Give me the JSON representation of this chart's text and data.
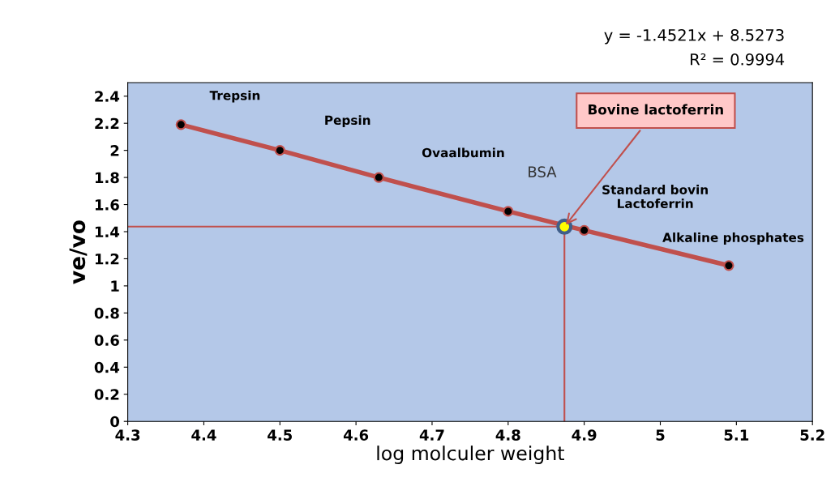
{
  "chart_data": {
    "type": "line",
    "xlabel": "log molculer weight",
    "ylabel": "ve/vo",
    "x": [
      4.37,
      4.5,
      4.63,
      4.8,
      4.9,
      5.09
    ],
    "series": [
      {
        "color": "#c0504d",
        "values": [
          2.19,
          2.0,
          1.8,
          1.55,
          1.41,
          1.15
        ],
        "marker": "circle"
      },
      {
        "type": "scatter",
        "x": [
          4.874
        ],
        "color": "#ffff00",
        "values": [
          1.437
        ]
      }
    ],
    "xlim": [
      4.3,
      5.2
    ],
    "xticks": [
      4.3,
      4.4,
      4.5,
      4.6,
      4.7,
      4.8,
      4.9,
      5,
      5.1,
      5.2
    ],
    "ylim": [
      0,
      2.5
    ],
    "yticks": [
      0,
      0.2,
      0.4,
      0.6,
      0.8,
      1,
      1.2,
      1.4,
      1.6,
      1.8,
      2,
      2.2,
      2.4
    ],
    "ref_lines": [
      {
        "axis": "y",
        "value": 1.437,
        "color": "#c0504d"
      },
      {
        "axis": "x",
        "value": 4.874,
        "color": "#c0504d"
      }
    ],
    "annotations": [
      "y = -1.4521x + 8.5273",
      "R² = 0.9994",
      {
        "text": "Trepsin",
        "x": 4.37,
        "y": 2.19
      },
      "Pepsin",
      "Ovaalbumin",
      {
        "text": "BSA",
        "x": 4.8,
        "y": 1.55
      },
      {
        "text": "Standard bovin\nLactoferrin",
        "x": 4.9,
        "y": 1.41
      },
      {
        "text": "Alkaline phosphates",
        "x": 5.09,
        "y": 1.15
      },
      {
        "text": "Bovine lactoferrin",
        "x": 4.874,
        "y": 1.437
      }
    ],
    "grid": false,
    "legend": false
  }
}
